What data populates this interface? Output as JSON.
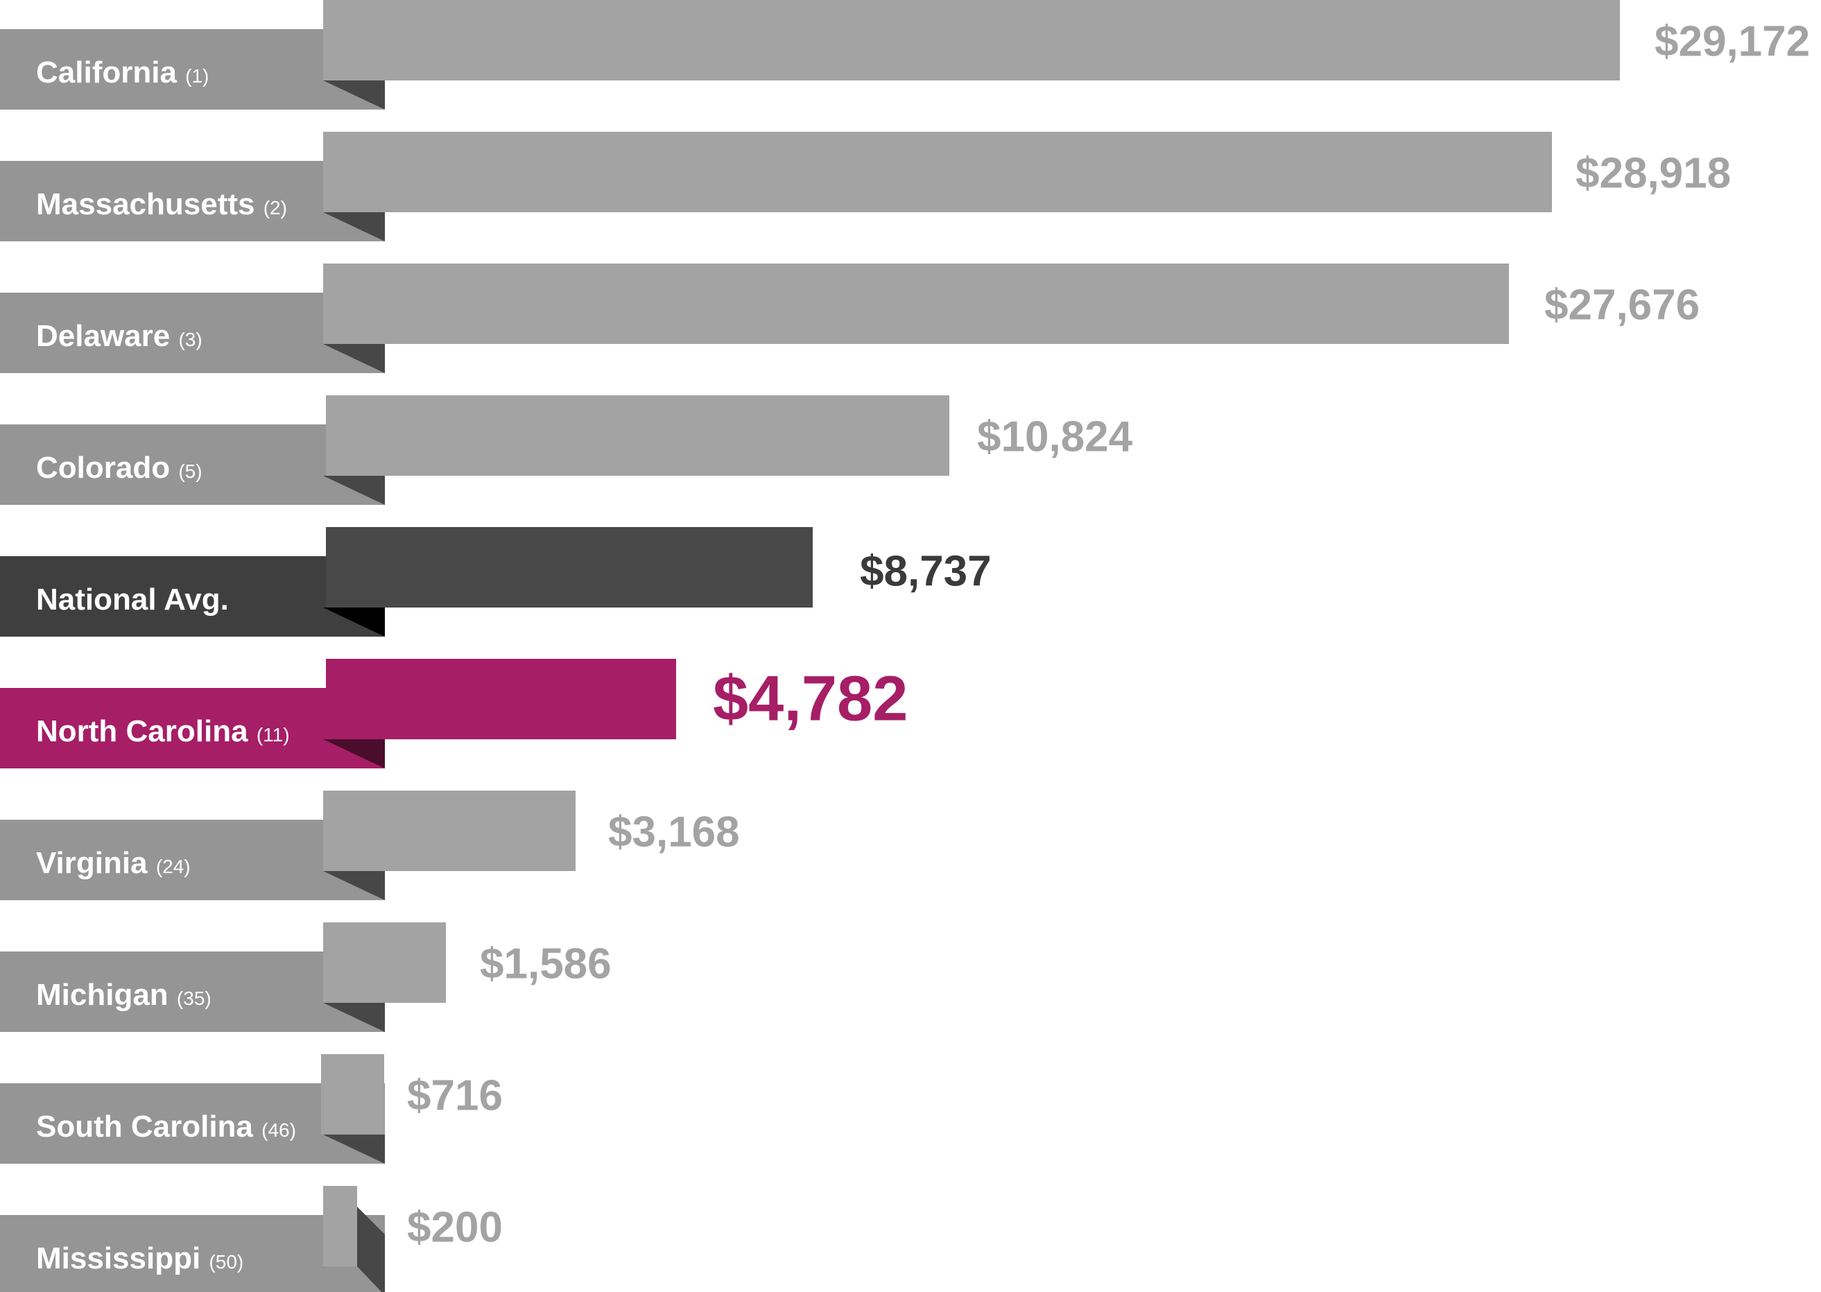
{
  "chart_data": {
    "type": "bar",
    "orientation": "horizontal",
    "categories": [
      "California",
      "Massachusetts",
      "Delaware",
      "Colorado",
      "National Avg.",
      "North Carolina",
      "Virginia",
      "Michigan",
      "South Carolina",
      "Mississippi"
    ],
    "ranks": [
      "(1)",
      "(2)",
      "(3)",
      "(5)",
      "",
      "(11)",
      "(24)",
      "(35)",
      "(46)",
      "(50)"
    ],
    "values": [
      29172,
      28918,
      27676,
      10824,
      8737,
      4782,
      3168,
      1586,
      716,
      200
    ],
    "value_labels": [
      "$29,172",
      "$28,918",
      "$27,676",
      "$10,824",
      "$8,737",
      "$4,782",
      "$3,168",
      "$1,586",
      "$716",
      "$200"
    ],
    "highlight": {
      "National Avg.": "national",
      "North Carolina": "focus"
    },
    "colors": {
      "default_bar": "#a3a3a3",
      "default_label": "#959595",
      "default_fold": "#474747",
      "national_bar": "#484848",
      "national_label": "#3f3f3f",
      "national_fold": "#000000",
      "focus_bar": "#a61e66",
      "focus_fold": "#4a0d2c",
      "value_text": "#a3a3a3",
      "national_text": "#3a3a3a",
      "focus_text": "#a61e66"
    },
    "title": "",
    "xlabel": "",
    "ylabel": "",
    "grid": false,
    "legend": "none"
  }
}
